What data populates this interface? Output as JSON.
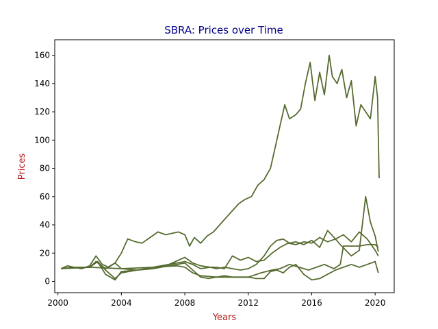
{
  "chart_data": {
    "type": "line",
    "title": "SBRA: Prices over Time",
    "xlabel": "Years",
    "ylabel": "Prices",
    "xlim": [
      1999.8,
      2021.2
    ],
    "ylim": [
      -8,
      171
    ],
    "x_ticks": [
      2000,
      2004,
      2008,
      2012,
      2016,
      2020
    ],
    "x_tick_labels": [
      "2000",
      "2004",
      "2008",
      "2012",
      "2016",
      "2020"
    ],
    "y_ticks": [
      0,
      20,
      40,
      60,
      80,
      100,
      120,
      140,
      160
    ],
    "y_tick_labels": [
      "0",
      "20",
      "40",
      "60",
      "80",
      "100",
      "120",
      "140",
      "160"
    ],
    "grid": false,
    "colors": {
      "line": "#556b2f",
      "title": "#00008b",
      "axis_label": "#b22222"
    },
    "series": [
      {
        "x": [
          2000.2,
          2000.6,
          2001.0,
          2001.5,
          2002.0,
          2002.4,
          2002.8,
          2003.2,
          2003.6,
          2004.0,
          2004.4,
          2004.9,
          2005.3,
          2005.8,
          2006.3,
          2006.8,
          2007.2,
          2007.6,
          2008.0,
          2008.3,
          2008.6,
          2009.0,
          2009.4,
          2009.8,
          2010.2,
          2010.6,
          2011.0,
          2011.4,
          2011.8,
          2012.2,
          2012.6,
          2013.0,
          2013.4,
          2013.7,
          2014.0,
          2014.3,
          2014.6,
          2015.0,
          2015.3,
          2015.6,
          2015.9,
          2016.2,
          2016.5,
          2016.8,
          2017.1,
          2017.3,
          2017.6,
          2017.9,
          2018.2,
          2018.5,
          2018.8,
          2019.1,
          2019.4,
          2019.7,
          2020.0,
          2020.15,
          2020.25
        ],
        "y": [
          9,
          11,
          10,
          9,
          11,
          18,
          12,
          10,
          13,
          20,
          30,
          28,
          27,
          31,
          35,
          33,
          34,
          35,
          33,
          25,
          31,
          27,
          32,
          35,
          40,
          45,
          50,
          55,
          58,
          60,
          68,
          72,
          80,
          95,
          110,
          125,
          115,
          118,
          122,
          140,
          155,
          128,
          148,
          132,
          160,
          145,
          140,
          150,
          130,
          142,
          110,
          125,
          120,
          115,
          145,
          130,
          73
        ]
      },
      {
        "x": [
          2000.2,
          2001.0,
          2002.0,
          2002.4,
          2003.0,
          2003.6,
          2004.0,
          2005.0,
          2006.0,
          2007.0,
          2008.0,
          2008.5,
          2009.0,
          2009.6,
          2010.0,
          2010.5,
          2011.0,
          2011.5,
          2012.0,
          2012.5,
          2013.0,
          2013.4,
          2013.8,
          2014.2,
          2014.6,
          2015.0,
          2015.5,
          2016.0,
          2016.5,
          2017.0,
          2017.5,
          2018.0,
          2018.5,
          2019.0,
          2019.5,
          2020.0,
          2020.2
        ],
        "y": [
          9,
          10,
          10,
          14,
          9,
          13,
          9,
          8,
          10,
          12,
          14,
          12,
          9,
          10,
          9,
          10,
          9,
          8,
          9,
          12,
          18,
          25,
          29,
          30,
          27,
          28,
          26,
          29,
          24,
          36,
          30,
          33,
          28,
          35,
          30,
          22,
          18
        ]
      },
      {
        "x": [
          2000.2,
          2001.0,
          2002.0,
          2002.5,
          2003.0,
          2003.6,
          2004.0,
          2005.0,
          2006.0,
          2007.0,
          2007.6,
          2008.0,
          2008.5,
          2009.0,
          2009.6,
          2010.0,
          2010.5,
          2011.0,
          2011.5,
          2012.0,
          2012.5,
          2013.0,
          2013.5,
          2014.0,
          2014.5,
          2015.0,
          2015.5,
          2016.0,
          2016.5,
          2017.0,
          2017.5,
          2017.8,
          2018.5,
          2019.0,
          2019.4,
          2019.7,
          2020.0,
          2020.2
        ],
        "y": [
          9,
          10,
          10,
          14,
          8,
          2,
          6,
          8,
          9,
          12,
          15,
          17,
          13,
          11,
          10,
          10,
          9,
          18,
          15,
          17,
          14,
          15,
          20,
          24,
          27,
          26,
          28,
          27,
          31,
          28,
          30,
          26,
          18,
          22,
          60,
          42,
          32,
          21
        ]
      },
      {
        "x": [
          2000.2,
          2001.0,
          2002.0,
          2002.5,
          2003.0,
          2003.6,
          2004.0,
          2005.0,
          2006.0,
          2007.0,
          2008.0,
          2008.5,
          2009.0,
          2009.5,
          2010.0,
          2010.5,
          2011.0,
          2011.5,
          2012.0,
          2012.5,
          2013.0,
          2013.4,
          2013.8,
          2014.2,
          2014.6,
          2015.0,
          2015.5,
          2016.0,
          2016.5,
          2017.0,
          2017.5,
          2018.0,
          2018.5,
          2019.0,
          2019.5,
          2020.0,
          2020.2
        ],
        "y": [
          9,
          10,
          10,
          14,
          5,
          1,
          7,
          8,
          9,
          11,
          13,
          8,
          3,
          2,
          3,
          4,
          3,
          3,
          3,
          2,
          2,
          7,
          8,
          6,
          10,
          12,
          5,
          1,
          2,
          5,
          8,
          10,
          12,
          10,
          12,
          14,
          6
        ]
      },
      {
        "x": [
          2000.2,
          2002.0,
          2004.0,
          2006.0,
          2007.5,
          2008.0,
          2008.5,
          2009.0,
          2010.0,
          2011.0,
          2012.0,
          2012.8,
          2013.5,
          2014.0,
          2014.6,
          2015.2,
          2015.8,
          2016.3,
          2016.8,
          2017.4,
          2017.8,
          2018.0,
          2018.4,
          2019.0,
          2019.5,
          2020.0,
          2020.2
        ],
        "y": [
          9,
          10,
          9,
          10,
          11,
          10,
          6,
          4,
          3,
          3,
          3,
          6,
          8,
          9,
          12,
          10,
          8,
          10,
          12,
          9,
          12,
          25,
          25,
          25,
          26,
          26,
          24
        ]
      }
    ]
  }
}
